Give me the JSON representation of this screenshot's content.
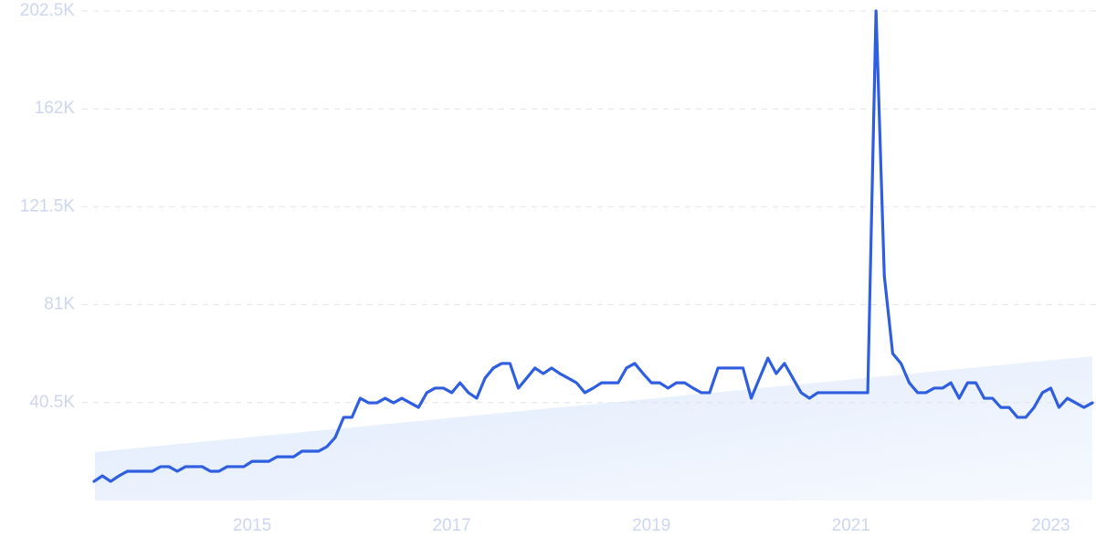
{
  "chart_data": {
    "type": "line",
    "color": "#2f5fe0",
    "grid": true,
    "ylim": [
      0,
      202500
    ],
    "yticks": [
      {
        "value": 40500,
        "label": "40.5K"
      },
      {
        "value": 81000,
        "label": "81K"
      },
      {
        "value": 121500,
        "label": "121.5K"
      },
      {
        "value": 162000,
        "label": "162K"
      },
      {
        "value": 202500,
        "label": "202.5K"
      }
    ],
    "xlim": [
      2013.417,
      2023.417
    ],
    "xticks": [
      2015,
      2017,
      2019,
      2021,
      2023
    ],
    "x": [
      2013.417,
      2013.5,
      2013.583,
      2013.667,
      2013.75,
      2013.833,
      2013.917,
      2014.0,
      2014.083,
      2014.167,
      2014.25,
      2014.333,
      2014.417,
      2014.5,
      2014.583,
      2014.667,
      2014.75,
      2014.833,
      2014.917,
      2015.0,
      2015.083,
      2015.167,
      2015.25,
      2015.333,
      2015.417,
      2015.5,
      2015.583,
      2015.667,
      2015.75,
      2015.833,
      2015.917,
      2016.0,
      2016.083,
      2016.167,
      2016.25,
      2016.333,
      2016.417,
      2016.5,
      2016.583,
      2016.667,
      2016.75,
      2016.833,
      2016.917,
      2017.0,
      2017.083,
      2017.167,
      2017.25,
      2017.333,
      2017.417,
      2017.5,
      2017.583,
      2017.667,
      2017.75,
      2017.833,
      2017.917,
      2018.0,
      2018.083,
      2018.167,
      2018.25,
      2018.333,
      2018.417,
      2018.5,
      2018.583,
      2018.667,
      2018.75,
      2018.833,
      2018.917,
      2019.0,
      2019.083,
      2019.167,
      2019.25,
      2019.333,
      2019.417,
      2019.5,
      2019.583,
      2019.667,
      2019.75,
      2019.833,
      2019.917,
      2020.0,
      2020.083,
      2020.167,
      2020.25,
      2020.333,
      2020.417,
      2020.5,
      2020.583,
      2020.667,
      2020.75,
      2020.833,
      2020.917,
      2021.0,
      2021.083,
      2021.167,
      2021.25,
      2021.333,
      2021.417,
      2021.5,
      2021.583,
      2021.667,
      2021.75,
      2021.833,
      2021.917,
      2022.0,
      2022.083,
      2022.167,
      2022.25,
      2022.333,
      2022.417,
      2022.5,
      2022.583,
      2022.667,
      2022.75,
      2022.833,
      2022.917,
      2023.0,
      2023.083,
      2023.167,
      2023.25,
      2023.333,
      2023.417
    ],
    "values": [
      7900,
      10200,
      7900,
      10200,
      12100,
      12100,
      12100,
      12100,
      14000,
      14000,
      12100,
      14000,
      14000,
      14000,
      12100,
      12100,
      14000,
      14000,
      14000,
      16200,
      16200,
      16200,
      18100,
      18100,
      18100,
      20400,
      20400,
      20400,
      22300,
      26100,
      34400,
      34400,
      42300,
      40400,
      40400,
      42300,
      40400,
      42300,
      40400,
      38500,
      44600,
      46500,
      46500,
      44600,
      48700,
      44600,
      42300,
      50600,
      54800,
      56700,
      56700,
      46500,
      50600,
      54800,
      52500,
      54800,
      52500,
      50600,
      48700,
      44600,
      46500,
      48700,
      48700,
      48700,
      54800,
      56700,
      52500,
      48700,
      48700,
      46500,
      48700,
      48700,
      46500,
      44600,
      44600,
      54800,
      54800,
      54800,
      54800,
      42300,
      50600,
      58900,
      52500,
      56700,
      50600,
      44600,
      42300,
      44600,
      44600,
      44600,
      44600,
      44600,
      44600,
      44600,
      202500,
      92900,
      60800,
      56700,
      48700,
      44600,
      44600,
      46500,
      46500,
      48700,
      42300,
      48700,
      48700,
      42300,
      42300,
      38500,
      38500,
      34400,
      34400,
      38500,
      44600,
      46500,
      38500,
      42300,
      40400,
      38500,
      40400
    ]
  }
}
